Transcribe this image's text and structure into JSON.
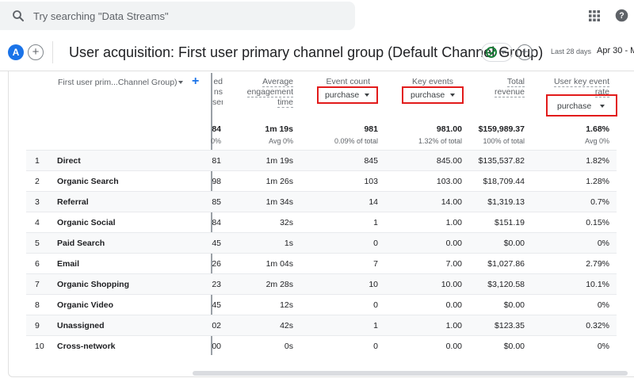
{
  "search": {
    "placeholder": "Try searching \"Data Streams\""
  },
  "icons": {
    "search": "search-icon",
    "apps": "apps-grid-icon",
    "help": "help-icon",
    "status": "check-circle-icon"
  },
  "colors": {
    "accent": "#1a73e8",
    "highlight": "#e21b1b",
    "ok": "#188038"
  },
  "header": {
    "avatar": "A",
    "title": "User acquisition: First user primary channel group (Default Channel Group)",
    "date_label": "Last 28 days",
    "date_range": "Apr 30 - M"
  },
  "table": {
    "dimension_header": "First user prim...Channel Group)",
    "columns": {
      "sessions_partial": [
        "ed",
        "ns",
        "ser"
      ],
      "avg_engagement": [
        "Average",
        "engagement",
        "time"
      ],
      "event_count": "Event count",
      "key_events": "Key events",
      "total_revenue": [
        "Total",
        "revenue"
      ],
      "user_key_event_rate": [
        "User key event",
        "rate"
      ]
    },
    "event_filter": "purchase",
    "key_filter": "purchase",
    "rate_filter": "purchase",
    "totals": {
      "sessions": "84",
      "sessions_sub": "0%",
      "avg_engagement": "1m 19s",
      "avg_engagement_sub": "Avg 0%",
      "event_count": "981",
      "event_count_sub": "0.09% of total",
      "key_events": "981.00",
      "key_events_sub": "1.32% of total",
      "revenue": "$159,989.37",
      "revenue_sub": "100% of total",
      "rate": "1.68%",
      "rate_sub": "Avg 0%"
    },
    "rows": [
      {
        "idx": "1",
        "channel": "Direct",
        "sessions": "81",
        "avg": "1m 19s",
        "events": "845",
        "key": "845.00",
        "revenue": "$135,537.82",
        "rate": "1.82%"
      },
      {
        "idx": "2",
        "channel": "Organic Search",
        "sessions": "98",
        "avg": "1m 26s",
        "events": "103",
        "key": "103.00",
        "revenue": "$18,709.44",
        "rate": "1.28%"
      },
      {
        "idx": "3",
        "channel": "Referral",
        "sessions": "85",
        "avg": "1m 34s",
        "events": "14",
        "key": "14.00",
        "revenue": "$1,319.13",
        "rate": "0.7%"
      },
      {
        "idx": "4",
        "channel": "Organic Social",
        "sessions": "84",
        "avg": "32s",
        "events": "1",
        "key": "1.00",
        "revenue": "$151.19",
        "rate": "0.15%"
      },
      {
        "idx": "5",
        "channel": "Paid Search",
        "sessions": "45",
        "avg": "1s",
        "events": "0",
        "key": "0.00",
        "revenue": "$0.00",
        "rate": "0%"
      },
      {
        "idx": "6",
        "channel": "Email",
        "sessions": "26",
        "avg": "1m 04s",
        "events": "7",
        "key": "7.00",
        "revenue": "$1,027.86",
        "rate": "2.79%"
      },
      {
        "idx": "7",
        "channel": "Organic Shopping",
        "sessions": "23",
        "avg": "2m 28s",
        "events": "10",
        "key": "10.00",
        "revenue": "$3,120.58",
        "rate": "10.1%"
      },
      {
        "idx": "8",
        "channel": "Organic Video",
        "sessions": "45",
        "avg": "12s",
        "events": "0",
        "key": "0.00",
        "revenue": "$0.00",
        "rate": "0%"
      },
      {
        "idx": "9",
        "channel": "Unassigned",
        "sessions": "02",
        "avg": "42s",
        "events": "1",
        "key": "1.00",
        "revenue": "$123.35",
        "rate": "0.32%"
      },
      {
        "idx": "10",
        "channel": "Cross-network",
        "sessions": "00",
        "avg": "0s",
        "events": "0",
        "key": "0.00",
        "revenue": "$0.00",
        "rate": "0%"
      }
    ]
  }
}
